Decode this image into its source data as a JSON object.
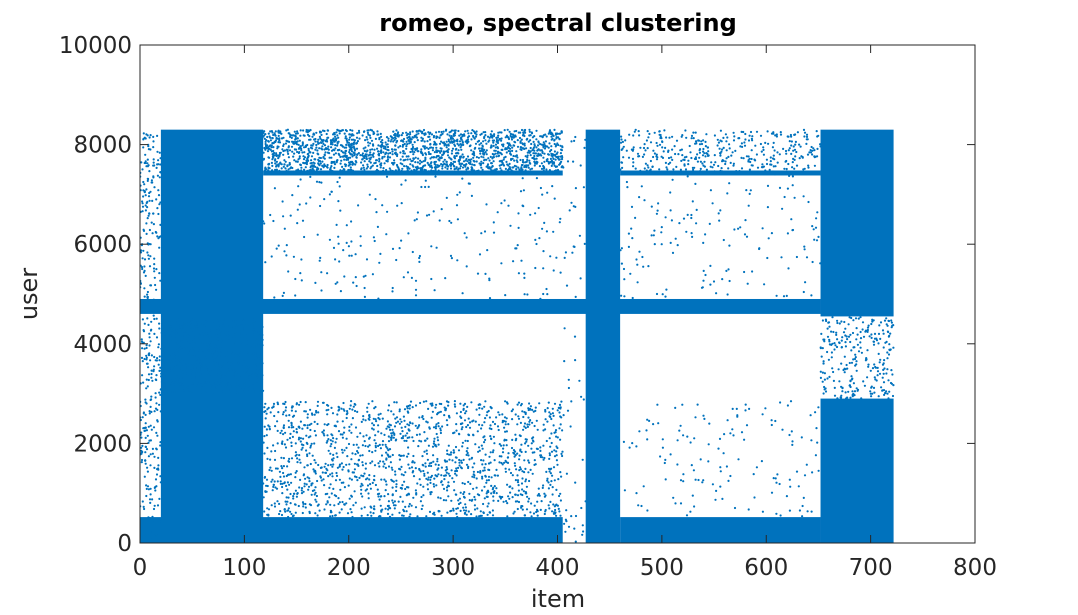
{
  "chart_data": {
    "type": "scatter",
    "title": "romeo, spectral clustering",
    "xlabel": "item",
    "ylabel": "user",
    "xlim": [
      0,
      800
    ],
    "ylim": [
      0,
      10000
    ],
    "xticks": [
      "0",
      "100",
      "200",
      "300",
      "400",
      "500",
      "600",
      "700",
      "800"
    ],
    "yticks": [
      "0",
      "2000",
      "4000",
      "6000",
      "8000",
      "10000"
    ],
    "grid": false,
    "legend": "none",
    "marker_color": "#0072BD",
    "series": [
      {
        "clusters": [
          {
            "x": [
              20,
              118
            ],
            "y": [
              0,
              8300
            ],
            "density": "solid"
          },
          {
            "x": [
              20,
              118
            ],
            "y": [
              3000,
              4500
            ],
            "density": "dense"
          },
          {
            "x": [
              427,
              460
            ],
            "y": [
              0,
              8300
            ],
            "density": "solid"
          },
          {
            "x": [
              652,
              722
            ],
            "y": [
              0,
              2900
            ],
            "density": "solid"
          },
          {
            "x": [
              652,
              722
            ],
            "y": [
              4550,
              8300
            ],
            "density": "solid"
          },
          {
            "x": [
              652,
              722
            ],
            "y": [
              2900,
              4550
            ],
            "density": "medium"
          },
          {
            "x": [
              0,
              652
            ],
            "y": [
              4600,
              4900
            ],
            "density": "solid"
          },
          {
            "x": [
              0,
              405
            ],
            "y": [
              0,
              520
            ],
            "density": "solid"
          },
          {
            "x": [
              460,
              652
            ],
            "y": [
              0,
              520
            ],
            "density": "solid"
          },
          {
            "x": [
              118,
              405
            ],
            "y": [
              520,
              2850
            ],
            "density": "medium"
          },
          {
            "x": [
              460,
              652
            ],
            "y": [
              520,
              2850
            ],
            "density": "sparse"
          },
          {
            "x": [
              118,
              405
            ],
            "y": [
              7450,
              8300
            ],
            "density": "dense"
          },
          {
            "x": [
              460,
              652
            ],
            "y": [
              7450,
              8300
            ],
            "density": "medium"
          },
          {
            "x": [
              118,
              405
            ],
            "y": [
              4900,
              7450
            ],
            "density": "sparse"
          },
          {
            "x": [
              460,
              652
            ],
            "y": [
              4900,
              7450
            ],
            "density": "sparse"
          },
          {
            "x": [
              0,
              20
            ],
            "y": [
              0,
              8300
            ],
            "density": "medium"
          },
          {
            "x": [
              405,
              427
            ],
            "y": [
              0,
              8300
            ],
            "density": "sparse"
          },
          {
            "x": [
              118,
              405
            ],
            "y": [
              7380,
              7480
            ],
            "density": "solid"
          },
          {
            "x": [
              460,
              652
            ],
            "y": [
              7380,
              7480
            ],
            "density": "solid"
          }
        ]
      }
    ]
  }
}
